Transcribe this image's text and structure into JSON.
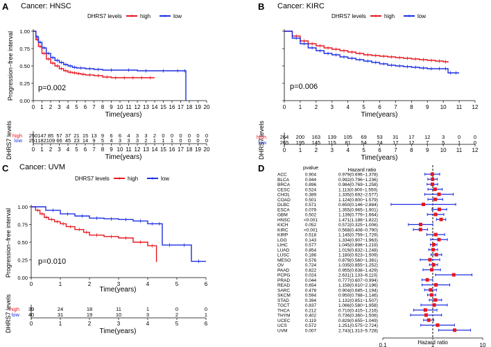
{
  "chart_data": [
    {
      "type": "km",
      "panel_letter": "A",
      "title": "Cancer: HNSC",
      "legend_title": "DHRS7 levels",
      "xlabel": "Time(years)",
      "ylabel": "Progression−free interval",
      "risk_ylabel": "DHRS7 levels",
      "xlim": [
        0,
        20
      ],
      "xticks": [
        0,
        1,
        2,
        3,
        4,
        5,
        6,
        7,
        8,
        9,
        10,
        11,
        12,
        13,
        14,
        15,
        16,
        17,
        18,
        19,
        20
      ],
      "ylim": [
        0,
        1
      ],
      "yticks": [
        "0.00",
        "0.25",
        "0.50",
        "0.75",
        "1.00"
      ],
      "pvalue": "p=0.002",
      "series": [
        {
          "name": "high",
          "color": "#e8161f",
          "x": [
            0,
            0.3,
            0.6,
            1,
            1.5,
            2,
            2.5,
            3,
            3.5,
            4,
            4.5,
            5,
            5.5,
            6,
            7,
            8,
            9,
            10,
            11,
            12,
            13,
            14
          ],
          "y": [
            1,
            0.88,
            0.78,
            0.68,
            0.6,
            0.54,
            0.5,
            0.46,
            0.43,
            0.41,
            0.4,
            0.39,
            0.38,
            0.37,
            0.36,
            0.34,
            0.33,
            0.33,
            0.33,
            0.33,
            0.33,
            0.33
          ]
        },
        {
          "name": "low",
          "color": "#1b2fe0",
          "x": [
            0,
            0.3,
            0.6,
            1,
            1.5,
            2,
            2.5,
            3,
            3.5,
            4,
            4.5,
            5,
            6,
            7,
            8,
            10,
            12,
            14,
            16,
            17.3,
            17.6
          ],
          "y": [
            1,
            0.92,
            0.84,
            0.76,
            0.68,
            0.62,
            0.58,
            0.55,
            0.52,
            0.5,
            0.48,
            0.47,
            0.46,
            0.45,
            0.44,
            0.44,
            0.43,
            0.43,
            0.43,
            0.43,
            0
          ]
        }
      ],
      "risk_table": {
        "high": [
          "250",
          "147",
          "85",
          "57",
          "37",
          "21",
          "15",
          "13",
          "9",
          "6",
          "6",
          "4",
          "3",
          "3",
          "2",
          "0",
          "0",
          "0",
          "0",
          "0",
          "0"
        ],
        "low": [
          "251",
          "182",
          "109",
          "66",
          "45",
          "23",
          "14",
          "9",
          "5",
          "4",
          "3",
          "3",
          "3",
          "2",
          "1",
          "1",
          "1",
          "0",
          "0",
          "0",
          "0"
        ]
      }
    },
    {
      "type": "km",
      "panel_letter": "B",
      "title": "Cancer: KIRC",
      "legend_title": "DHRS7 levels",
      "xlabel": "Time(years)",
      "ylabel": "",
      "risk_ylabel": "DHRS7 levels",
      "xlim": [
        0,
        12
      ],
      "xticks": [
        0,
        1,
        2,
        3,
        4,
        5,
        6,
        7,
        8,
        9,
        10,
        11,
        12
      ],
      "ylim": [
        0,
        1
      ],
      "pvalue": "p=0.006",
      "series": [
        {
          "name": "high",
          "color": "#e8161f",
          "x": [
            0,
            0.5,
            1,
            1.5,
            2,
            2.5,
            3,
            3.5,
            4,
            4.5,
            5,
            5.5,
            6,
            6.5,
            7,
            7.5,
            8,
            8.5,
            9,
            9.5,
            10,
            10.3
          ],
          "y": [
            1,
            0.93,
            0.86,
            0.82,
            0.79,
            0.76,
            0.74,
            0.72,
            0.7,
            0.68,
            0.66,
            0.65,
            0.64,
            0.63,
            0.62,
            0.61,
            0.6,
            0.59,
            0.58,
            0.57,
            0.56,
            0.55
          ]
        },
        {
          "name": "low",
          "color": "#1b2fe0",
          "x": [
            0,
            0.5,
            1,
            1.5,
            2,
            2.5,
            3,
            3.5,
            4,
            4.5,
            5,
            5.5,
            6,
            6.5,
            7,
            7.5,
            8,
            8.5,
            9,
            9.5,
            10,
            10.3,
            10.6,
            11
          ],
          "y": [
            1,
            0.9,
            0.82,
            0.76,
            0.72,
            0.68,
            0.66,
            0.63,
            0.61,
            0.59,
            0.57,
            0.55,
            0.53,
            0.51,
            0.5,
            0.49,
            0.48,
            0.47,
            0.46,
            0.46,
            0.46,
            0.4,
            0.4,
            0.4
          ]
        }
      ],
      "risk_table": {
        "high": [
          "264",
          "200",
          "163",
          "139",
          "105",
          "69",
          "53",
          "31",
          "17",
          "12",
          "3",
          "0",
          "0"
        ],
        "low": [
          "265",
          "195",
          "145",
          "115",
          "81",
          "54",
          "24",
          "17",
          "12",
          "7",
          "5",
          "1",
          "0"
        ]
      }
    },
    {
      "type": "km",
      "panel_letter": "C",
      "title": "Cancer: UVM",
      "legend_title": "DHRS7 levels",
      "xlabel": "Time(years)",
      "ylabel": "Progression−free interval",
      "risk_ylabel": "DHRS7 levels",
      "xlim": [
        0,
        6
      ],
      "xticks": [
        0,
        1,
        2,
        3,
        4,
        5,
        6
      ],
      "ylim": [
        0,
        1
      ],
      "yticks": [
        "0.00",
        "0.25",
        "0.50",
        "0.75",
        "1.00"
      ],
      "pvalue": "p=0.010",
      "series": [
        {
          "name": "high",
          "color": "#e8161f",
          "x": [
            0,
            0.15,
            0.3,
            0.45,
            0.6,
            0.8,
            1,
            1.2,
            1.5,
            1.8,
            2,
            2.5,
            3,
            3.5,
            4,
            4.3
          ],
          "y": [
            1,
            0.95,
            0.9,
            0.85,
            0.82,
            0.79,
            0.76,
            0.72,
            0.68,
            0.64,
            0.6,
            0.58,
            0.56,
            0.5,
            0.45,
            0.22
          ]
        },
        {
          "name": "low",
          "color": "#1b2fe0",
          "x": [
            0,
            0.5,
            1,
            1.5,
            2,
            2.5,
            3,
            3.5,
            4,
            4.3,
            4.5,
            5,
            5.5,
            6
          ],
          "y": [
            1,
            0.95,
            0.9,
            0.87,
            0.84,
            0.83,
            0.82,
            0.8,
            0.76,
            0.76,
            0.46,
            0.46,
            0.23,
            0.23
          ]
        }
      ],
      "risk_table": {
        "high": [
          "39",
          "24",
          "18",
          "11",
          "1",
          "0",
          "0"
        ],
        "low": [
          "40",
          "31",
          "19",
          "10",
          "3",
          "2",
          "1"
        ]
      }
    },
    {
      "type": "forest",
      "panel_letter": "D",
      "col_pvalue": "pvalue",
      "col_hr": "Hazard ratio",
      "xlabel": "Hazard ratio",
      "xticks": [
        "0.1",
        "1",
        "10"
      ],
      "xlim": [
        0.1,
        10
      ],
      "log_scale": true,
      "color_point": "#e8161f",
      "color_ci": "#1b2fe0",
      "rows": [
        {
          "name": "ACC",
          "p": "0.904",
          "hr": "0.979(0.696−1.378)",
          "est": 0.979,
          "lo": 0.696,
          "hi": 1.378
        },
        {
          "name": "BLCA",
          "p": "0.944",
          "hr": "0.992(0.796−1.236)",
          "est": 0.992,
          "lo": 0.796,
          "hi": 1.236
        },
        {
          "name": "BRCA",
          "p": "0.896",
          "hr": "0.984(0.769−1.258)",
          "est": 0.984,
          "lo": 0.769,
          "hi": 1.258
        },
        {
          "name": "CESC",
          "p": "0.524",
          "hr": "1.113(0.800−1.550)",
          "est": 1.113,
          "lo": 0.8,
          "hi": 1.55
        },
        {
          "name": "CHOL",
          "p": "0.389",
          "hr": "1.335(0.692−2.577)",
          "est": 1.335,
          "lo": 0.692,
          "hi": 2.577
        },
        {
          "name": "COAD",
          "p": "0.501",
          "hr": "1.124(0.800−1.579)",
          "est": 1.124,
          "lo": 0.8,
          "hi": 1.579
        },
        {
          "name": "DLBC",
          "p": "0.571",
          "hr": "0.650(0.146−2.884)",
          "est": 0.65,
          "lo": 0.146,
          "hi": 2.884
        },
        {
          "name": "ESCA",
          "p": "0.079",
          "hr": "1.355(0.965−1.901)",
          "est": 1.355,
          "lo": 0.965,
          "hi": 1.901
        },
        {
          "name": "GBM",
          "p": "0.502",
          "hr": "1.139(0.779−1.664)",
          "est": 1.139,
          "lo": 0.779,
          "hi": 1.664
        },
        {
          "name": "HNSC",
          "p": "<0.001",
          "hr": "1.471(1.188−1.822)",
          "est": 1.471,
          "lo": 1.188,
          "hi": 1.822
        },
        {
          "name": "KICH",
          "p": "0.052",
          "hr": "0.572(0.325−1.006)",
          "est": 0.572,
          "lo": 0.325,
          "hi": 1.006
        },
        {
          "name": "KIRC",
          "p": "<0.001",
          "hr": "0.568(0.408−0.790)",
          "est": 0.568,
          "lo": 0.408,
          "hi": 0.79
        },
        {
          "name": "KIRP",
          "p": "0.518",
          "hr": "1.145(0.759−1.729)",
          "est": 1.145,
          "lo": 0.759,
          "hi": 1.729
        },
        {
          "name": "LGG",
          "p": "0.143",
          "hr": "1.334(0.907−1.963)",
          "est": 1.334,
          "lo": 0.907,
          "hi": 1.963
        },
        {
          "name": "LIHC",
          "p": "0.577",
          "hr": "1.045(0.896−1.219)",
          "est": 1.045,
          "lo": 0.896,
          "hi": 1.219
        },
        {
          "name": "LUAD",
          "p": "0.854",
          "hr": "1.019(0.832−1.248)",
          "est": 1.019,
          "lo": 0.832,
          "hi": 1.248
        },
        {
          "name": "LUSC",
          "p": "0.186",
          "hr": "1.180(0.923−1.509)",
          "est": 1.18,
          "lo": 0.923,
          "hi": 1.509
        },
        {
          "name": "MESO",
          "p": "0.576",
          "hr": "0.879(0.560−1.381)",
          "est": 0.879,
          "lo": 0.56,
          "hi": 1.381
        },
        {
          "name": "OV",
          "p": "0.724",
          "hr": "1.035(0.855−1.252)",
          "est": 1.035,
          "lo": 0.855,
          "hi": 1.252
        },
        {
          "name": "PAAD",
          "p": "0.822",
          "hr": "0.955(0.638−1.429)",
          "est": 0.955,
          "lo": 0.638,
          "hi": 1.429
        },
        {
          "name": "PCPG",
          "p": "0.024",
          "hr": "2.631(1.133−6.110)",
          "est": 2.631,
          "lo": 1.133,
          "hi": 6.11
        },
        {
          "name": "PRAD",
          "p": "0.044",
          "hr": "0.777(0.607−0.994)",
          "est": 0.777,
          "lo": 0.607,
          "hi": 0.994
        },
        {
          "name": "READ",
          "p": "0.654",
          "hr": "1.158(0.610−2.196)",
          "est": 1.158,
          "lo": 0.61,
          "hi": 2.196
        },
        {
          "name": "SARC",
          "p": "0.478",
          "hr": "0.904(0.685−1.194)",
          "est": 0.904,
          "lo": 0.685,
          "hi": 1.194
        },
        {
          "name": "SKCM",
          "p": "0.594",
          "hr": "0.950(0.788−1.146)",
          "est": 0.95,
          "lo": 0.788,
          "hi": 1.146
        },
        {
          "name": "STAD",
          "p": "0.394",
          "hr": "1.132(0.851−1.507)",
          "est": 1.132,
          "lo": 0.851,
          "hi": 1.507
        },
        {
          "name": "TGCT",
          "p": "0.837",
          "hr": "1.066(0.580−1.958)",
          "est": 1.066,
          "lo": 0.58,
          "hi": 1.958
        },
        {
          "name": "THCA",
          "p": "0.212",
          "hr": "0.710(0.415−1.216)",
          "est": 0.71,
          "lo": 0.415,
          "hi": 1.216
        },
        {
          "name": "THYM",
          "p": "0.402",
          "hr": "0.736(0.360−1.506)",
          "est": 0.736,
          "lo": 0.36,
          "hi": 1.506
        },
        {
          "name": "UCEC",
          "p": "0.119",
          "hr": "0.829(0.655−1.049)",
          "est": 0.829,
          "lo": 0.655,
          "hi": 1.049
        },
        {
          "name": "UCS",
          "p": "0.572",
          "hr": "1.251(0.575−2.724)",
          "est": 1.251,
          "lo": 0.575,
          "hi": 2.724
        },
        {
          "name": "UVM",
          "p": "0.007",
          "hr": "2.743(1.313−5.728)",
          "est": 2.743,
          "lo": 1.313,
          "hi": 5.728
        }
      ]
    }
  ]
}
